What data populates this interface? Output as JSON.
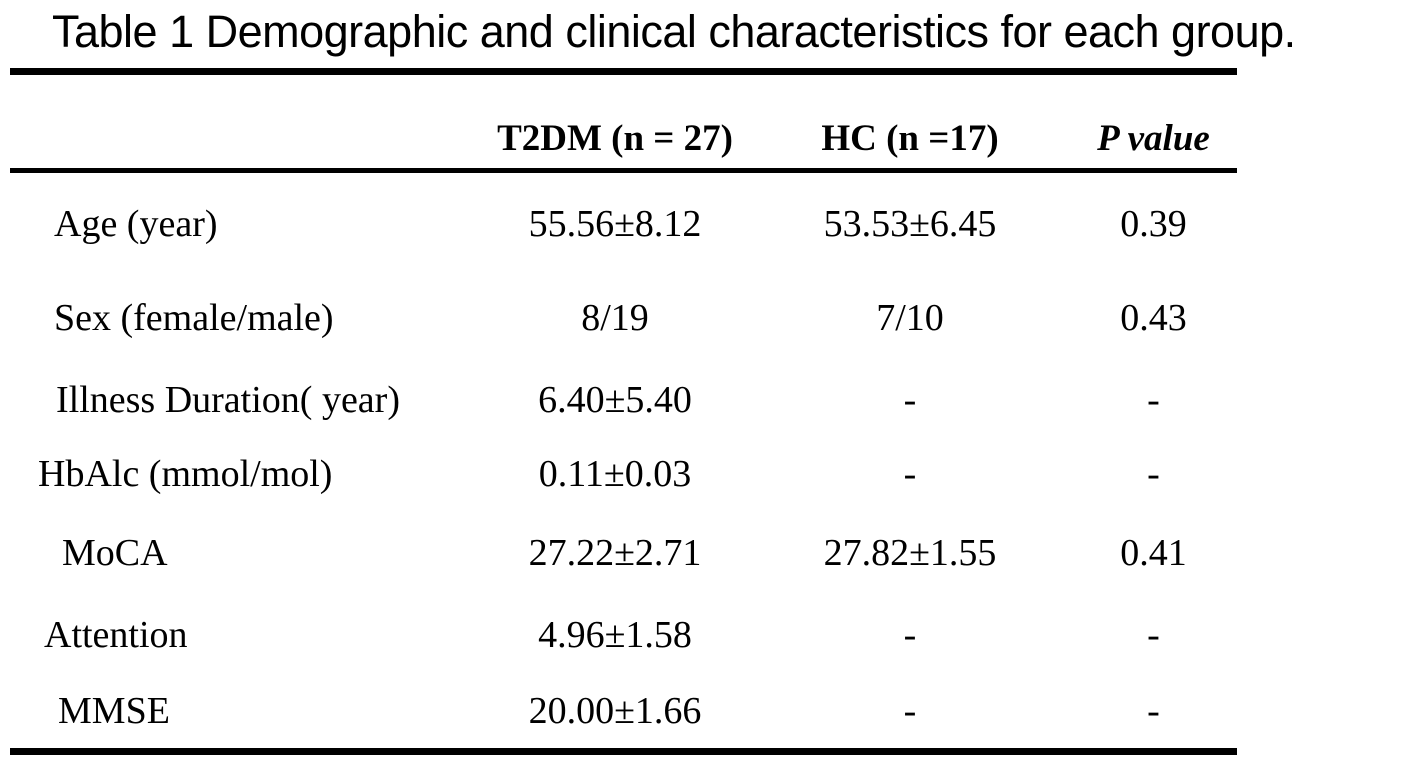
{
  "title": "Table 1 Demographic and clinical characteristics for each group.",
  "table": {
    "columns": {
      "label": "",
      "t2dm": "T2DM (n = 27)",
      "hc": "HC (n =17)",
      "p": "P value"
    },
    "rows": [
      {
        "label": "Age (year)",
        "t2dm": "55.56±8.12",
        "hc": "53.53±6.45",
        "p": "0.39"
      },
      {
        "label": "Sex (female/male)",
        "t2dm": "8/19",
        "hc": "7/10",
        "p": "0.43"
      },
      {
        "label": "Illness Duration( year)",
        "t2dm": "6.40±5.40",
        "hc": "-",
        "p": "-"
      },
      {
        "label": "HbAlc (mmol/mol)",
        "t2dm": "0.11±0.03",
        "hc": "-",
        "p": "-"
      },
      {
        "label": "MoCA",
        "t2dm": "27.22±2.71",
        "hc": "27.82±1.55",
        "p": "0.41"
      },
      {
        "label": "Attention",
        "t2dm": "4.96±1.58",
        "hc": "-",
        "p": "-"
      },
      {
        "label": "MMSE",
        "t2dm": "20.00±1.66",
        "hc": "-",
        "p": "-"
      }
    ]
  }
}
